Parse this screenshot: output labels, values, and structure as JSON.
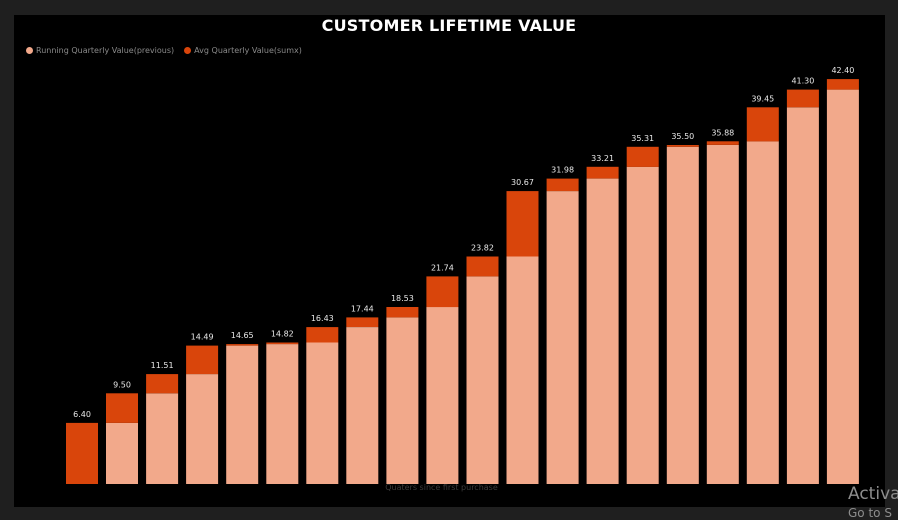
{
  "chart_data": {
    "type": "bar",
    "stacked": true,
    "title": "CUSTOMER LIFETIME VALUE",
    "xlabel": "Quaters since first purchase",
    "ylabel": "",
    "grid": false,
    "legend_position": "top-left",
    "categories": [
      "",
      "",
      "",
      "",
      "",
      "",
      "",
      "",
      "",
      "",
      "",
      "",
      "",
      "",
      "",
      "",
      "",
      "",
      "",
      ""
    ],
    "series": [
      {
        "name": "Running Quarterly Value(previous)",
        "color": "#f2a98b",
        "values": [
          0,
          6.4,
          9.5,
          11.51,
          14.49,
          14.65,
          14.82,
          16.43,
          17.44,
          18.53,
          21.74,
          23.82,
          30.67,
          31.98,
          33.21,
          35.31,
          35.5,
          35.88,
          39.45,
          41.3
        ]
      },
      {
        "name": "Avg Quarterly Value(sumx)",
        "color": "#d9450b",
        "values": [
          6.4,
          3.1,
          2.01,
          2.98,
          0.16,
          0.17,
          1.61,
          1.01,
          1.09,
          3.21,
          2.08,
          6.85,
          1.31,
          1.23,
          2.1,
          0.19,
          0.38,
          3.57,
          1.85,
          1.1
        ]
      }
    ],
    "totals": [
      "6.40",
      "9.50",
      "11.51",
      "14.49",
      "14.65",
      "14.82",
      "16.43",
      "17.44",
      "18.53",
      "21.74",
      "23.82",
      "30.67",
      "31.98",
      "33.21",
      "35.31",
      "35.50",
      "35.88",
      "39.45",
      "41.30",
      "42.40"
    ],
    "ylim": [
      0,
      45
    ]
  },
  "watermark": {
    "line1": "Activa",
    "line2": "Go to S"
  }
}
